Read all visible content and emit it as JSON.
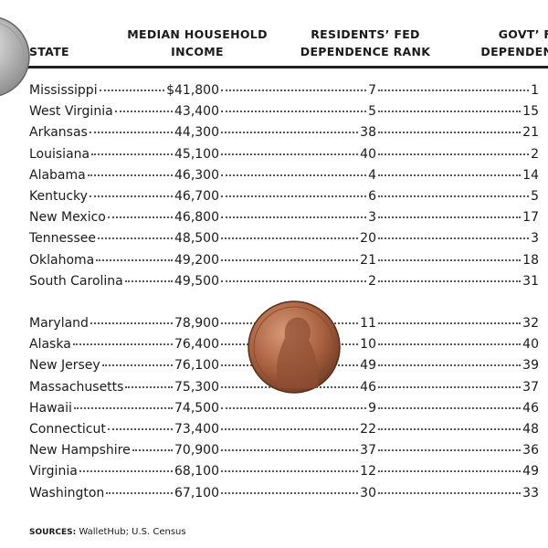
{
  "header": {
    "columns": [
      {
        "lines": [
          "STATE"
        ]
      },
      {
        "lines": [
          "MEDIAN HOUSEHOLD",
          "INCOME"
        ]
      },
      {
        "lines": [
          "RESIDENTS’ FED",
          "DEPENDENCE RANK"
        ]
      },
      {
        "lines": [
          "GOVT’ F",
          "DEPENDENCE"
        ]
      }
    ]
  },
  "table": {
    "groups": [
      {
        "rows": [
          [
            "Mississippi",
            "$41,800",
            "7",
            "1"
          ],
          [
            "West Virginia",
            "43,400",
            "5",
            "15"
          ],
          [
            "Arkansas",
            "44,300",
            "38",
            "21"
          ],
          [
            "Louisiana",
            "45,100",
            "40",
            "2"
          ],
          [
            "Alabama",
            "46,300",
            "4",
            "14"
          ],
          [
            "Kentucky",
            "46,700",
            "6",
            "5"
          ],
          [
            "New Mexico",
            "46,800",
            "3",
            "17"
          ],
          [
            "Tennessee",
            "48,500",
            "20",
            "3"
          ],
          [
            "Oklahoma",
            "49,200",
            "21",
            "18"
          ],
          [
            "South Carolina",
            "49,500",
            "2",
            "31"
          ]
        ]
      },
      {
        "rows": [
          [
            "Maryland",
            "78,900",
            "11",
            "32"
          ],
          [
            "Alaska",
            "76,400",
            "10",
            "40"
          ],
          [
            "New Jersey",
            "76,100",
            "49",
            "39"
          ],
          [
            "Massachusetts",
            "75,300",
            "46",
            "37"
          ],
          [
            "Hawaii",
            "74,500",
            "9",
            "46"
          ],
          [
            "Connecticut",
            "73,400",
            "22",
            "48"
          ],
          [
            "New Hampshire",
            "70,900",
            "37",
            "36"
          ],
          [
            "Virginia",
            "68,100",
            "12",
            "49"
          ],
          [
            "Washington",
            "67,100",
            "30",
            "33"
          ]
        ]
      }
    ]
  },
  "footer": {
    "label": "SOURCES:",
    "text": "WalletHub; U.S. Census"
  }
}
